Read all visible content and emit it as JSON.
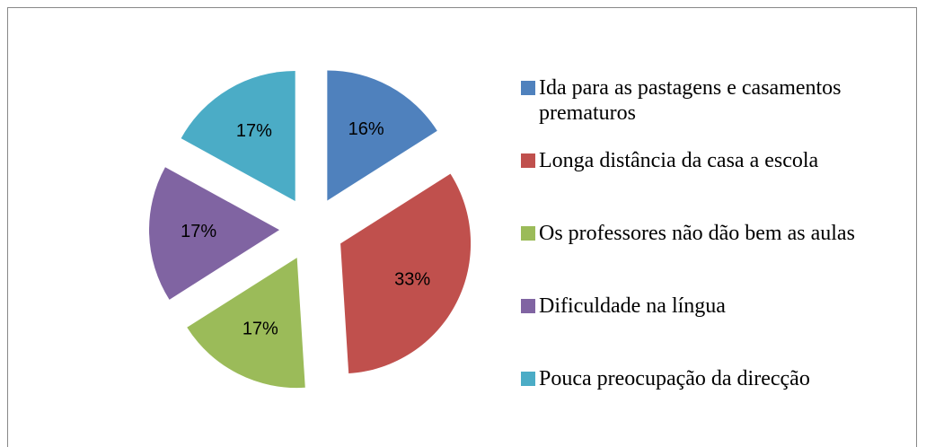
{
  "chart_data": {
    "type": "pie",
    "categories": [
      "Ida para as pastagens e casamentos prematuros",
      "Longa distância da casa a escola",
      "Os professores não dão bem as aulas",
      "Dificuldade na língua",
      "Pouca preocupação da direcção"
    ],
    "values": [
      16,
      33,
      17,
      17,
      17
    ],
    "value_labels": [
      "16%",
      "33%",
      "17%",
      "17%",
      "17%"
    ],
    "colors": [
      "#4f81bd",
      "#c0504d",
      "#9bbb59",
      "#8064a2",
      "#4bacc6"
    ],
    "legend": "right"
  }
}
